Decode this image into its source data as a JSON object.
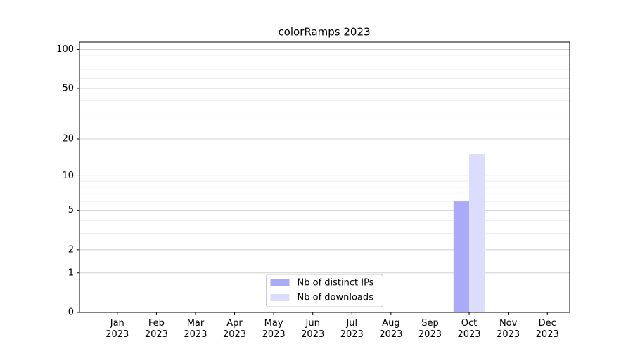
{
  "chart_data": {
    "type": "bar",
    "title": "colorRamps 2023",
    "categories": [
      "Jan\n2023",
      "Feb\n2023",
      "Mar\n2023",
      "Apr\n2023",
      "May\n2023",
      "Jun\n2023",
      "Jul\n2023",
      "Aug\n2023",
      "Sep\n2023",
      "Oct\n2023",
      "Nov\n2023",
      "Dec\n2023"
    ],
    "series": [
      {
        "name": "Nb of distinct IPs",
        "color": "#aaaaf8",
        "values": [
          0,
          0,
          0,
          0,
          0,
          0,
          0,
          0,
          0,
          6,
          0,
          0
        ]
      },
      {
        "name": "Nb of downloads",
        "color": "#dcdcfc",
        "values": [
          0,
          0,
          0,
          0,
          0,
          0,
          0,
          0,
          0,
          15,
          0,
          0
        ]
      }
    ],
    "yscale": "log1p",
    "ylim": [
      0,
      114
    ],
    "yticks": [
      0,
      1,
      2,
      5,
      10,
      20,
      50,
      100
    ],
    "minor_yticks": [
      3,
      4,
      6,
      7,
      8,
      9,
      30,
      40,
      60,
      70,
      80,
      90
    ],
    "grid": true,
    "legend": "lower center"
  }
}
